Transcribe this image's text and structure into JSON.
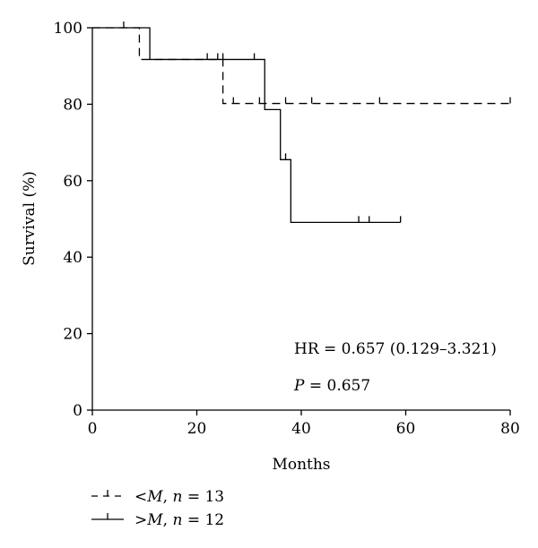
{
  "chart_data": {
    "type": "line",
    "subtype": "kaplan-meier",
    "title": "",
    "xlabel": "Months",
    "ylabel": "Survival (%)",
    "xlim": [
      0,
      80
    ],
    "ylim": [
      0,
      100
    ],
    "xticks": [
      0,
      20,
      40,
      60,
      80
    ],
    "yticks": [
      0,
      20,
      40,
      60,
      80,
      100
    ],
    "grid": false,
    "legend_position": "bottom-left",
    "annotations": {
      "hr_text": "HR = 0.657 (0.129–3.321)",
      "p_label": "P",
      "p_value_text": " = 0.657"
    },
    "series": [
      {
        "name": "<M, n = 13",
        "legend_parts": {
          "lt": "<",
          "var": "M",
          "sep": ", ",
          "n": "n",
          "eq": " = 13"
        },
        "line_style": "dashed",
        "steps": [
          [
            0,
            100
          ],
          [
            9,
            91.7
          ],
          [
            25,
            80.2
          ],
          [
            80,
            80.2
          ]
        ],
        "censored": [
          [
            6,
            100
          ],
          [
            22,
            91.7
          ],
          [
            24,
            91.7
          ],
          [
            27,
            80.2
          ],
          [
            32,
            80.2
          ],
          [
            37,
            80.2
          ],
          [
            42,
            80.2
          ],
          [
            55,
            80.2
          ],
          [
            80,
            80.2
          ]
        ]
      },
      {
        "name": ">M, n = 12",
        "legend_parts": {
          "lt": ">",
          "var": "M",
          "sep": ", ",
          "n": "n",
          "eq": " = 12"
        },
        "line_style": "solid",
        "steps": [
          [
            0,
            100
          ],
          [
            11,
            91.7
          ],
          [
            33,
            78.6
          ],
          [
            36,
            65.5
          ],
          [
            38,
            49.1
          ],
          [
            59,
            49.1
          ]
        ],
        "censored": [
          [
            25,
            91.7
          ],
          [
            31,
            91.7
          ],
          [
            37,
            65.5
          ],
          [
            51,
            49.1
          ],
          [
            53,
            49.1
          ],
          [
            59,
            49.1
          ]
        ]
      }
    ]
  }
}
